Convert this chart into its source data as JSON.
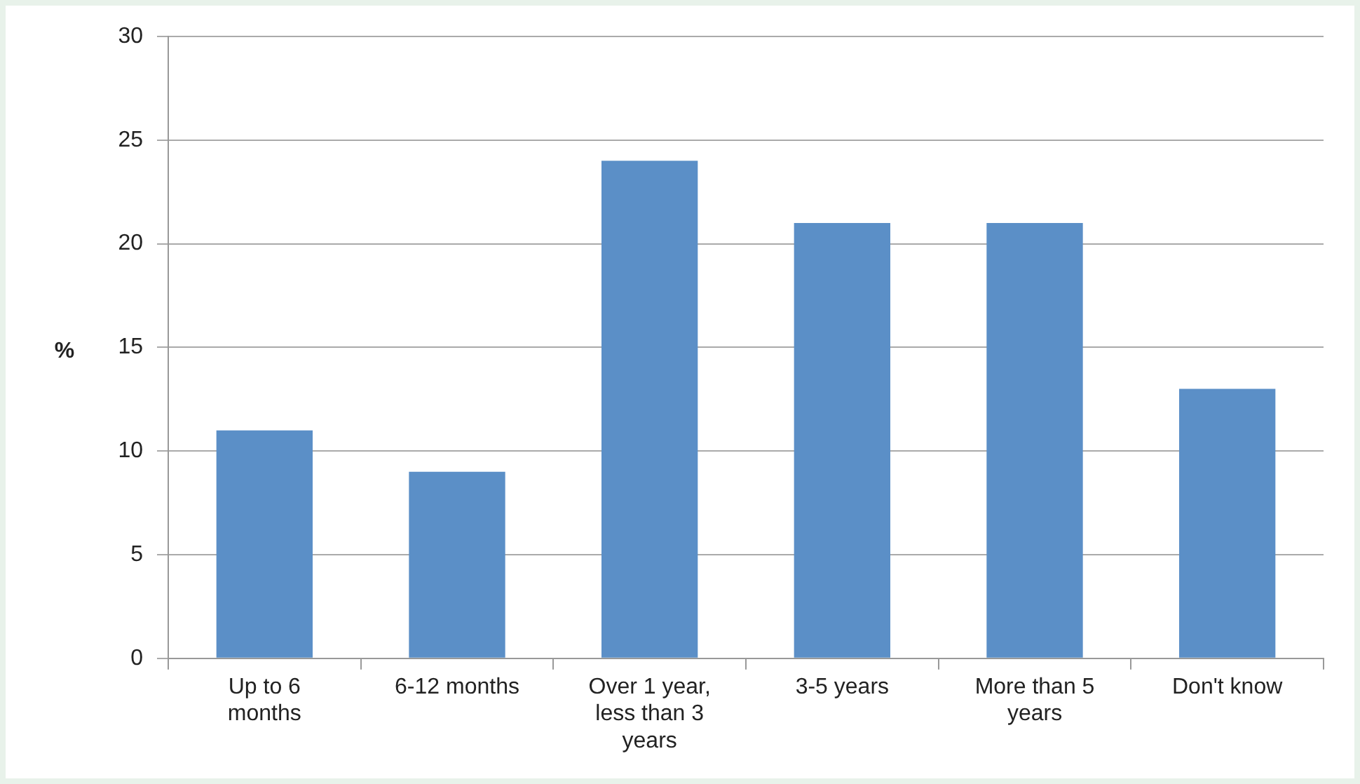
{
  "chart_data": {
    "type": "bar",
    "ylabel": "%",
    "categories": [
      "Up to 6 months",
      "6-12 months",
      "Over 1 year, less than 3 years",
      "3-5 years",
      "More than 5 years",
      "Don't know"
    ],
    "values": [
      11,
      9,
      24,
      21,
      21,
      13
    ],
    "color": "#5b8fc7",
    "ylim": [
      0,
      30
    ],
    "yticks": [
      0,
      5,
      10,
      15,
      20,
      25,
      30
    ],
    "grid": "y",
    "legend": false
  }
}
